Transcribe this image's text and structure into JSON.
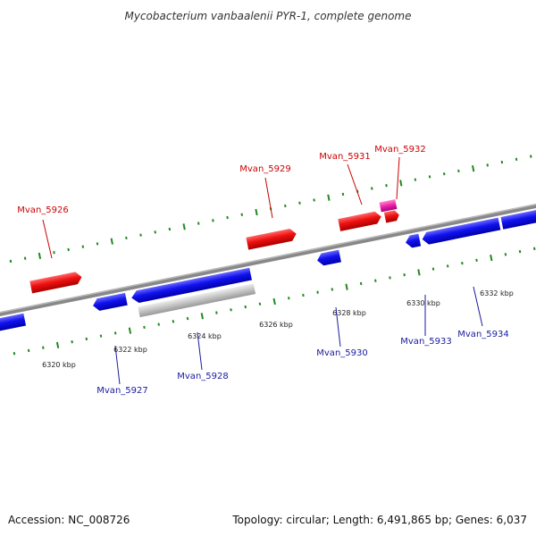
{
  "title": "Mycobacterium vanbaalenii PYR-1, complete genome",
  "footer": {
    "accession": "Accession: NC_008726",
    "summary": "Topology: circular; Length: 6,491,865 bp; Genes: 6,037"
  },
  "axis": {
    "ticks": [
      "6320 kbp",
      "6322 kbp",
      "6324 kbp",
      "6326 kbp",
      "6328 kbp",
      "6330 kbp",
      "6332 kbp"
    ]
  },
  "genes": {
    "forward": [
      {
        "name": "Mvan_5926",
        "color": "#ee1111"
      },
      {
        "name": "Mvan_5929",
        "color": "#ee1111"
      },
      {
        "name": "Mvan_5931",
        "color": "#ee1111"
      },
      {
        "name": "Mvan_5932",
        "color": "#ee1111"
      }
    ],
    "reverse": [
      {
        "name": "Mvan_5927",
        "color": "#1111ee"
      },
      {
        "name": "Mvan_5928",
        "color": "#1111ee"
      },
      {
        "name": "Mvan_5930",
        "color": "#1111ee"
      },
      {
        "name": "Mvan_5933",
        "color": "#1111ee"
      },
      {
        "name": "Mvan_5934",
        "color": "#1111ee"
      }
    ]
  },
  "colors": {
    "forward_gene": "#ee1111",
    "reverse_gene": "#1111ee",
    "pseudo_gene": "#bbbbbb",
    "rna_gene": "#ee22aa",
    "backbone": "#888888",
    "tick": "#228822"
  }
}
